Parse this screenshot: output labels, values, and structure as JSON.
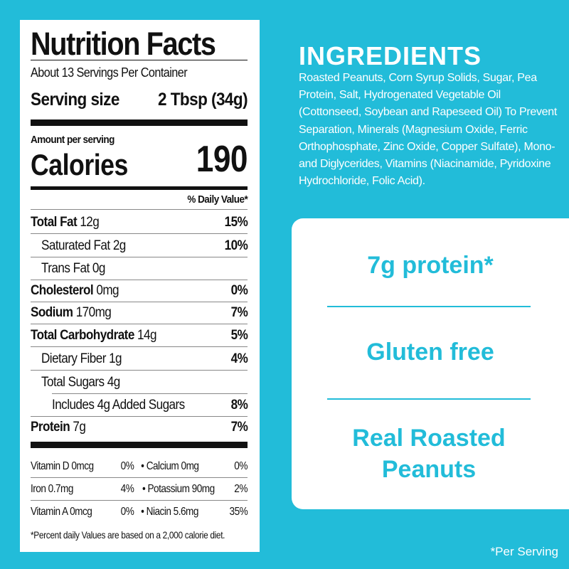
{
  "nutrition": {
    "title": "Nutrition Facts",
    "servings": "About 13 Servings Per Container",
    "serving_size_label": "Serving size",
    "serving_size_value": "2 Tbsp (34g)",
    "amount_per_serving": "Amount per serving",
    "calories_label": "Calories",
    "calories_value": "190",
    "dv_header": "% Daily Value*",
    "rows": [
      {
        "name": "Total Fat",
        "amount": "12g",
        "dv": "15%"
      },
      {
        "name": "Saturated Fat",
        "amount": "2g",
        "dv": "10%"
      },
      {
        "name": "Trans Fat",
        "amount": "0g",
        "dv": ""
      },
      {
        "name": "Cholesterol",
        "amount": "0mg",
        "dv": "0%"
      },
      {
        "name": "Sodium",
        "amount": "170mg",
        "dv": "7%"
      },
      {
        "name": "Total Carbohydrate",
        "amount": "14g",
        "dv": "5%"
      },
      {
        "name": "Dietary Fiber",
        "amount": "1g",
        "dv": "4%"
      },
      {
        "name": "Total Sugars",
        "amount": "4g",
        "dv": ""
      },
      {
        "name": "Includes 4g Added Sugars",
        "amount": "",
        "dv": "8%"
      },
      {
        "name": "Protein",
        "amount": "7g",
        "dv": "7%"
      }
    ],
    "micros": [
      {
        "left": "Vitamin D 0mcg",
        "left_dv": "0%",
        "right": "• Calcium 0mg",
        "right_dv": "0%"
      },
      {
        "left": "Iron 0.7mg",
        "left_dv": "4%",
        "right": "• Potassium 90mg",
        "right_dv": "2%"
      },
      {
        "left": "Vitamin A 0mcg",
        "left_dv": "0%",
        "right": "• Niacin 5.6mg",
        "right_dv": "35%"
      }
    ],
    "footnote": "*Percent daily Values are based on a 2,000 calorie diet."
  },
  "ingredients": {
    "title": "INGREDIENTS",
    "text": "Roasted Peanuts, Corn Syrup Solids, Sugar, Pea Protein, Salt, Hydrogenated Vegetable Oil (Cottonseed, Soybean and Rapeseed Oil) To Prevent Separation, Minerals (Magnesium Oxide, Ferric Orthophosphate, Zinc Oxide, Copper Sulfate), Mono- and Diglycerides, Vitamins (Niacinamide, Pyridoxine Hydrochloride, Folic Acid)."
  },
  "claims": [
    "7g protein*",
    "Gluten free",
    "Real Roasted Peanuts"
  ],
  "per_serving_note": "*Per Serving",
  "colors": {
    "background": "#22bcd9",
    "label": "#ffffff",
    "text": "#111111"
  }
}
